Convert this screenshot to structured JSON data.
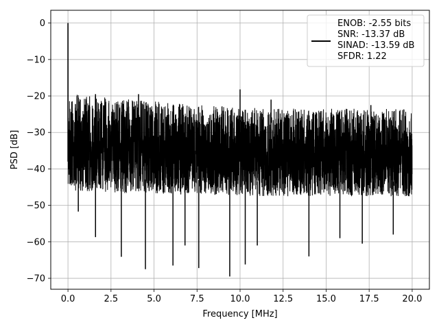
{
  "chart_data": {
    "type": "line",
    "title": "",
    "xlabel": "Frequency [MHz]",
    "ylabel": "PSD [dB]",
    "xlim": [
      -1.0,
      21.0
    ],
    "ylim": [
      -73.0,
      3.5
    ],
    "xticks": [
      0.0,
      2.5,
      5.0,
      7.5,
      10.0,
      12.5,
      15.0,
      17.5,
      20.0
    ],
    "xtick_labels": [
      "0.0",
      "2.5",
      "5.0",
      "7.5",
      "10.0",
      "12.5",
      "15.0",
      "17.5",
      "20.0"
    ],
    "yticks": [
      0,
      -10,
      -20,
      -30,
      -40,
      -50,
      -60,
      -70
    ],
    "ytick_labels": [
      "0",
      "−10",
      "−20",
      "−30",
      "−40",
      "−50",
      "−60",
      "−70"
    ],
    "grid": true,
    "legend_position": "top-right",
    "legend_lines": [
      "ENOB: -2.55 bits",
      "SNR: -13.37 dB",
      "SINAD: -13.59 dB",
      "SFDR: 1.22"
    ],
    "series": [
      {
        "color": "#000000",
        "x_range": [
          0.0,
          20.0
        ],
        "peak": {
          "x": 0.0,
          "y": 0.0
        },
        "upper_envelope": {
          "x": [
            0.3,
            2.5,
            5.0,
            7.5,
            10.0,
            12.5,
            15.0,
            17.5,
            20.0
          ],
          "y": [
            -19.5,
            -20.5,
            -21.5,
            -22.5,
            -23.0,
            -23.5,
            -23.5,
            -23.5,
            -23.5
          ]
        },
        "lower_envelope": {
          "x": [
            0.3,
            2.5,
            5.0,
            7.5,
            10.0,
            12.5,
            15.0,
            17.5,
            20.0
          ],
          "y": [
            -46.0,
            -46.5,
            -47.0,
            -47.0,
            -47.5,
            -47.5,
            -47.5,
            -47.5,
            -47.5
          ]
        },
        "spikes_up": [
          {
            "x": 1.6,
            "y": -19.5
          },
          {
            "x": 4.1,
            "y": -19.5
          },
          {
            "x": 10.0,
            "y": -18.2
          },
          {
            "x": 11.8,
            "y": -21.0
          },
          {
            "x": 17.6,
            "y": -22.5
          }
        ],
        "spikes_down": [
          {
            "x": 0.6,
            "y": -51.7
          },
          {
            "x": 1.6,
            "y": -58.7
          },
          {
            "x": 3.1,
            "y": -64.1
          },
          {
            "x": 4.5,
            "y": -67.5
          },
          {
            "x": 6.1,
            "y": -66.5
          },
          {
            "x": 6.8,
            "y": -61.0
          },
          {
            "x": 7.6,
            "y": -67.2
          },
          {
            "x": 9.4,
            "y": -69.5
          },
          {
            "x": 10.3,
            "y": -66.2
          },
          {
            "x": 11.0,
            "y": -61.0
          },
          {
            "x": 14.0,
            "y": -64.0
          },
          {
            "x": 15.8,
            "y": -59.0
          },
          {
            "x": 17.1,
            "y": -60.5
          },
          {
            "x": 18.9,
            "y": -58.0
          }
        ]
      }
    ]
  }
}
